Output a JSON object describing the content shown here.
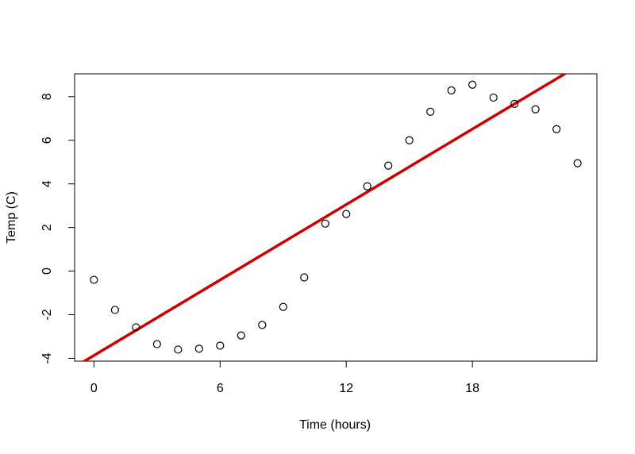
{
  "chart_data": {
    "type": "scatter",
    "x_label": "Time (hours)",
    "y_label": "Temp (C)",
    "x": [
      0,
      1,
      2,
      3,
      4,
      5,
      6,
      7,
      8,
      9,
      10,
      11,
      12,
      13,
      14,
      15,
      16,
      17,
      18,
      19,
      20,
      21,
      22,
      23
    ],
    "y": [
      -0.4,
      -1.78,
      -2.58,
      -3.35,
      -3.6,
      -3.56,
      -3.42,
      -2.95,
      -2.47,
      -1.64,
      -0.29,
      2.18,
      2.62,
      3.89,
      4.84,
      6.0,
      7.31,
      8.29,
      8.55,
      7.96,
      7.67,
      7.42,
      6.51,
      4.95
    ],
    "point_color": "#000000",
    "fit": {
      "intercept": -3.87,
      "slope": 0.577,
      "color": "#cc0000"
    },
    "xlim": [
      -0.92,
      23.92
    ],
    "ylim": [
      -4.13,
      9.05
    ],
    "xticks": [
      0,
      6,
      12,
      18
    ],
    "yticks": [
      -4,
      -2,
      0,
      2,
      4,
      6,
      8
    ]
  }
}
